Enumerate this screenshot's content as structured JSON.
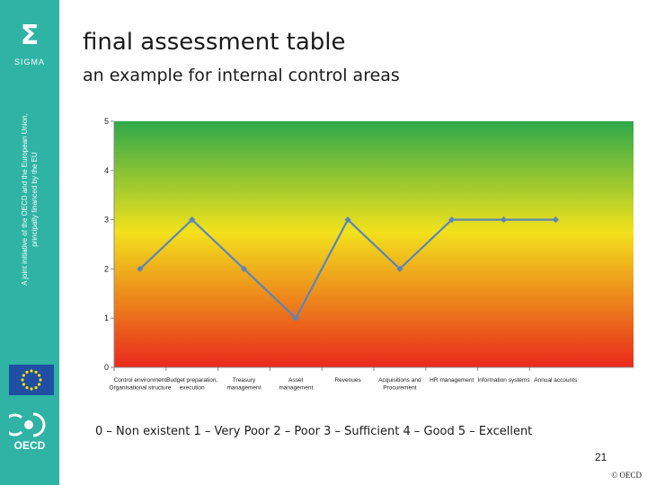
{
  "slide": {
    "title": "final assessment table",
    "subtitle": "an example for internal control areas",
    "scale_legend": "0 – Non existent   1 – Very Poor   2 – Poor   3 – Sufficient   4 – Good   5 – Excellent",
    "page_number": "21",
    "copyright": "© OECD"
  },
  "sidebar": {
    "sigma_symbol": "Σ",
    "sigma_word": "SIGMA",
    "initiative_line1": "A joint initiative of the OECD and the European Union,",
    "initiative_line2": "principally financed by the EU",
    "eu_flag_icon": "eu-flag-icon",
    "oecd_logo_text": "OECD",
    "background_color": "#2fb3a4"
  },
  "chart_data": {
    "type": "line",
    "categories": [
      [
        "Control environment",
        "Organisational structure"
      ],
      [
        "Budget preparation,",
        "execution"
      ],
      [
        "Treasury",
        "management"
      ],
      [
        "Asset",
        "management"
      ],
      [
        "Revenues"
      ],
      [
        "Acquisitions and",
        "Procurement"
      ],
      [
        "HR management"
      ],
      [
        "Information systems"
      ],
      [
        "Annual accounts"
      ]
    ],
    "values": [
      2,
      3,
      2,
      1,
      3,
      2,
      3,
      3,
      3
    ],
    "ylim": [
      0,
      5
    ],
    "yticks": [
      "0",
      "1",
      "2",
      "3",
      "4",
      "5"
    ],
    "line_color": "#5b86b8",
    "background_gradient": [
      "#2ea84a",
      "#f2e11c",
      "#e8291c"
    ],
    "grid": false,
    "legend": "none"
  }
}
